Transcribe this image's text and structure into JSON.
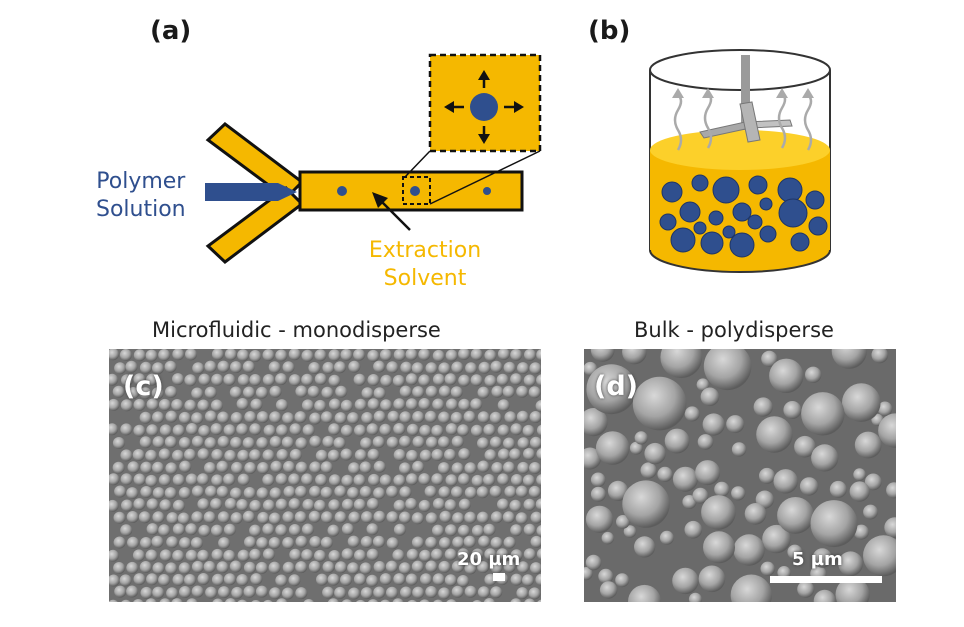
{
  "panels": {
    "a": {
      "letter": "(a)",
      "polymer_label": "Polymer\nSolution",
      "solvent_label": "Extraction\nSolvent"
    },
    "b": {
      "letter": "(b)"
    },
    "c": {
      "letter": "(c)",
      "caption": "Microfluidic - monodisperse",
      "scale": "20 µm"
    },
    "d": {
      "letter": "(d)",
      "caption": "Bulk - polydisperse",
      "scale": "5 µm"
    }
  },
  "colors": {
    "gold": "#f5b800",
    "droplet_blue": "#2f4f8e",
    "outline": "#111111",
    "sem_bg": "#7a7a7a"
  }
}
